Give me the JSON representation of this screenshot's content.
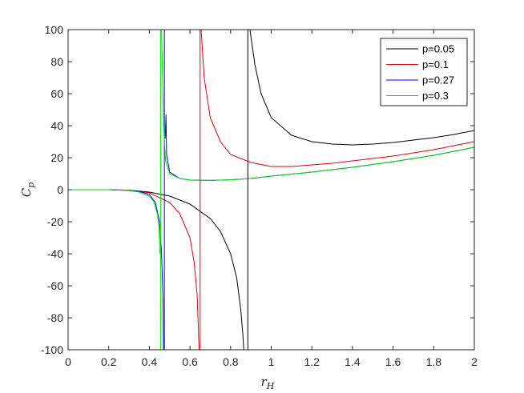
{
  "chart_data": {
    "type": "line",
    "title": "",
    "xlabel": "r",
    "xlabel_sub": "H",
    "ylabel": "C",
    "ylabel_sub": "p",
    "xlim": [
      0,
      2
    ],
    "ylim": [
      -100,
      100
    ],
    "xticks": [
      "0",
      "0.2",
      "0.4",
      "0.6",
      "0.8",
      "1",
      "1.2",
      "1.4",
      "1.6",
      "1.8",
      "2"
    ],
    "yticks": [
      "100",
      "80",
      "60",
      "40",
      "20",
      "0",
      "-20",
      "-40",
      "-60",
      "-80",
      "-100"
    ],
    "grid": false,
    "legend_position": "top-right",
    "series": [
      {
        "name": "p=0.05",
        "color": "#000000",
        "pole": 0.885,
        "left": [
          [
            0,
            0
          ],
          [
            0.2,
            0
          ],
          [
            0.3,
            -0.3
          ],
          [
            0.4,
            -1.5
          ],
          [
            0.5,
            -4
          ],
          [
            0.6,
            -9
          ],
          [
            0.7,
            -18
          ],
          [
            0.75,
            -26
          ],
          [
            0.8,
            -40
          ],
          [
            0.83,
            -55
          ],
          [
            0.85,
            -75
          ],
          [
            0.86,
            -90
          ],
          [
            0.865,
            -100
          ]
        ],
        "right": [
          [
            0.895,
            100
          ],
          [
            0.92,
            78
          ],
          [
            0.95,
            60
          ],
          [
            1.0,
            45
          ],
          [
            1.1,
            34
          ],
          [
            1.2,
            30
          ],
          [
            1.3,
            28.5
          ],
          [
            1.4,
            28
          ],
          [
            1.5,
            28.5
          ],
          [
            1.6,
            29.5
          ],
          [
            1.7,
            31
          ],
          [
            1.8,
            32.5
          ],
          [
            1.9,
            34.5
          ],
          [
            2.0,
            37
          ]
        ]
      },
      {
        "name": "p=0.1",
        "color": "#e8000b",
        "pole": 0.65,
        "left": [
          [
            0,
            0
          ],
          [
            0.2,
            0
          ],
          [
            0.3,
            -0.5
          ],
          [
            0.4,
            -2
          ],
          [
            0.5,
            -8
          ],
          [
            0.55,
            -15
          ],
          [
            0.6,
            -30
          ],
          [
            0.62,
            -45
          ],
          [
            0.635,
            -65
          ],
          [
            0.645,
            -100
          ]
        ],
        "right": [
          [
            0.655,
            100
          ],
          [
            0.67,
            70
          ],
          [
            0.7,
            45
          ],
          [
            0.75,
            30
          ],
          [
            0.8,
            22
          ],
          [
            0.9,
            17
          ],
          [
            1.0,
            14.5
          ],
          [
            1.1,
            14.5
          ],
          [
            1.2,
            15.5
          ],
          [
            1.3,
            16.5
          ],
          [
            1.4,
            18
          ],
          [
            1.5,
            19.5
          ],
          [
            1.6,
            21
          ],
          [
            1.7,
            23
          ],
          [
            1.8,
            25
          ],
          [
            1.9,
            27.5
          ],
          [
            2.0,
            30
          ]
        ]
      },
      {
        "name": "p=0.27",
        "color": "#0000ff",
        "pole": 0.474,
        "left": [
          [
            0,
            0
          ],
          [
            0.2,
            0
          ],
          [
            0.3,
            -0.3
          ],
          [
            0.35,
            -1
          ],
          [
            0.4,
            -3
          ],
          [
            0.43,
            -8
          ],
          [
            0.45,
            -20
          ],
          [
            0.46,
            -40
          ],
          [
            0.468,
            -70
          ],
          [
            0.47,
            -100
          ]
        ],
        "right": [
          [
            0.478,
            32
          ],
          [
            0.482,
            47
          ],
          [
            0.485,
            22
          ],
          [
            0.5,
            11
          ],
          [
            0.55,
            7
          ],
          [
            0.6,
            6
          ],
          [
            0.7,
            5.8
          ],
          [
            0.8,
            6.2
          ],
          [
            0.9,
            7
          ],
          [
            1.0,
            8.5
          ],
          [
            1.2,
            11
          ],
          [
            1.4,
            14
          ],
          [
            1.6,
            17.5
          ],
          [
            1.8,
            21.5
          ],
          [
            2.0,
            26.5
          ]
        ]
      },
      {
        "name": "p=0.3",
        "color": "#00dd00",
        "pole": 0.455,
        "left": [
          [
            0,
            0
          ],
          [
            0.2,
            0
          ],
          [
            0.3,
            -0.5
          ],
          [
            0.35,
            -1.5
          ],
          [
            0.4,
            -4
          ],
          [
            0.42,
            -7
          ],
          [
            0.44,
            -15
          ],
          [
            0.448,
            -25
          ],
          [
            0.452,
            -40
          ]
        ],
        "right": [
          [
            0.46,
            100
          ],
          [
            0.465,
            70
          ],
          [
            0.47,
            40
          ],
          [
            0.48,
            18
          ],
          [
            0.5,
            10
          ],
          [
            0.55,
            7
          ],
          [
            0.6,
            6
          ],
          [
            0.7,
            5.8
          ],
          [
            0.8,
            6.2
          ],
          [
            0.9,
            7
          ],
          [
            1.0,
            8.5
          ],
          [
            1.2,
            11
          ],
          [
            1.4,
            14
          ],
          [
            1.6,
            17.5
          ],
          [
            1.8,
            21.5
          ],
          [
            2.0,
            26.5
          ]
        ]
      }
    ]
  }
}
